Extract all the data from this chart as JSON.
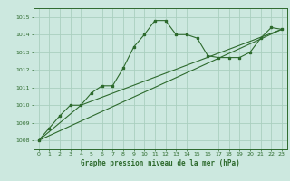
{
  "title": "Graphe pression niveau de la mer (hPa)",
  "bg_color": "#cce8df",
  "grid_color": "#aacfbf",
  "line_color": "#2d6a2d",
  "xlim": [
    -0.5,
    23.5
  ],
  "ylim": [
    1007.5,
    1015.5
  ],
  "xticks": [
    0,
    1,
    2,
    3,
    4,
    5,
    6,
    7,
    8,
    9,
    10,
    11,
    12,
    13,
    14,
    15,
    16,
    17,
    18,
    19,
    20,
    21,
    22,
    23
  ],
  "yticks": [
    1008,
    1009,
    1010,
    1011,
    1012,
    1013,
    1014,
    1015
  ],
  "series1_x": [
    0,
    1,
    2,
    3,
    4,
    5,
    6,
    7,
    8,
    9,
    10,
    11,
    12,
    13,
    14,
    15,
    16,
    17,
    18,
    19,
    20,
    21,
    22,
    23
  ],
  "series1_y": [
    1008.0,
    1008.7,
    1009.4,
    1010.0,
    1010.0,
    1010.7,
    1011.1,
    1011.1,
    1012.1,
    1013.3,
    1014.0,
    1014.8,
    1014.8,
    1014.0,
    1014.0,
    1013.8,
    1012.8,
    1012.7,
    1012.7,
    1012.7,
    1013.0,
    1013.8,
    1014.4,
    1014.3
  ],
  "series2_x": [
    0,
    23
  ],
  "series2_y": [
    1008.0,
    1014.3
  ],
  "series3_x": [
    0,
    4,
    23
  ],
  "series3_y": [
    1008.0,
    1010.0,
    1014.3
  ],
  "title_fontsize": 5.5,
  "tick_fontsize": 4.5,
  "linewidth": 0.8,
  "markersize": 2.0
}
